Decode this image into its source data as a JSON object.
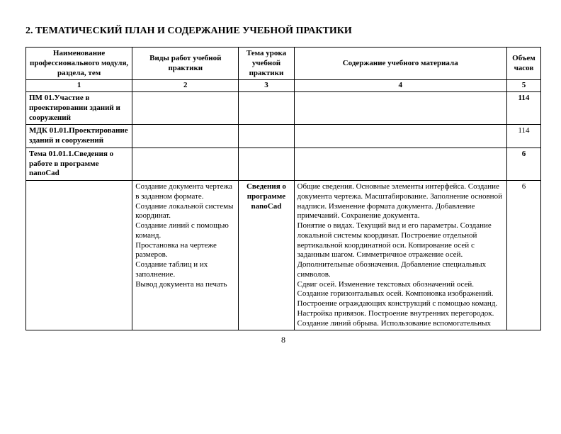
{
  "title": "2. ТЕМАТИЧЕСКИЙ ПЛАН И СОДЕРЖАНИЕ УЧЕБНОЙ ПРАКТИКИ",
  "page_number": "8",
  "table": {
    "headers": {
      "c1": "Наименование профессионального модуля, раздела, тем",
      "c2": "Виды работ учебной практики",
      "c3": "Тема урока учебной практики",
      "c4": "Содержание учебного материала",
      "c5": "Объем часов"
    },
    "number_row": {
      "c1": "1",
      "c2": "2",
      "c3": "3",
      "c4": "4",
      "c5": "5"
    },
    "rows": {
      "r1": {
        "c1": "ПМ 01.Участие в проектировании зданий и сооружений",
        "c2": "",
        "c3": "",
        "c4": "",
        "c5": "114"
      },
      "r2": {
        "c1": "МДК 01.01.Проектирование зданий и сооружений",
        "c2": "",
        "c3": "",
        "c4": "",
        "c5": "114"
      },
      "r3": {
        "c1": "Тема 01.01.1.Сведения о работе в  программе nanoCad",
        "c2": "",
        "c3": "",
        "c4": "",
        "c5": "6"
      },
      "r4": {
        "c1": "",
        "c2": "Создание документа чертежа в заданном формате.\nСоздание локальной системы координат.\nСоздание линий с помощью команд.\nПростановка на чертеже размеров.\nСоздание таблиц и их заполнение.\nВывод документа на печать",
        "c3": "Сведения о программе nanoCad",
        "c4": "Общие сведения. Основные элементы интерфейса. Создание документа чертежа. Масштабирование.  Заполнение основной надписи. Изменение формата документа. Добавление примечаний. Сохранение документа.\n   Понятие о видах.  Текущий вид и его параметры. Создание локальной системы координат. Построение отдельной вертикальной координатной оси. Копирование осей с заданным шагом. Симметричное отражение осей. Дополнительные обозначения. Добавление специальных символов.\nСдвиг осей. Изменение текстовых обозначений осей.  Создание горизонтальных осей. Компоновка изображений.\n   Построение ограждающих  конструкций с помощью команд.  Настройка привязок. Построение внутренних перегородок. Создание линий обрыва. Использование вспомогательных",
        "c5": "6"
      }
    }
  }
}
